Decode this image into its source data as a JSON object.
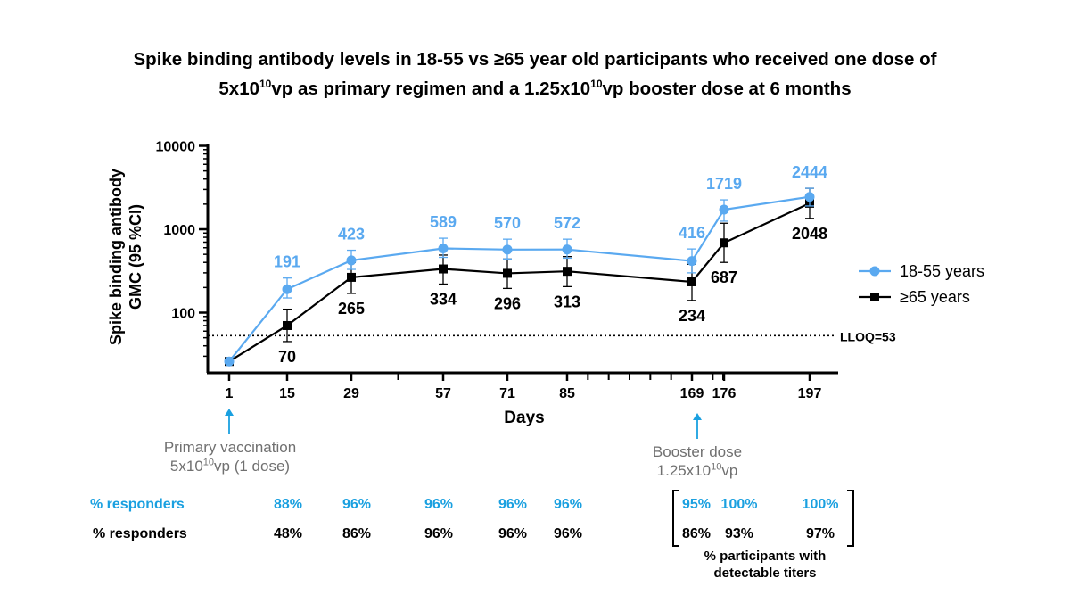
{
  "header": {
    "title_line1": "Spike binding antibody levels in 18-55 vs ≥65 year old participants who received one dose of",
    "title_line2": "5x10¹⁰vp as primary regimen and a 1.25x10¹⁰vp booster dose at 6 months"
  },
  "chart_data": {
    "type": "line",
    "title": "",
    "xlabel": "Days",
    "ylabel": "Spike binding antibody GMC (95 %CI)",
    "yscale": "log",
    "ylim": [
      25,
      10000
    ],
    "yticks": [
      100,
      1000,
      10000
    ],
    "yticklabels": [
      "100",
      "1000",
      "10000"
    ],
    "x": [
      1,
      15,
      29,
      57,
      71,
      85,
      169,
      176,
      197
    ],
    "xticklabels": [
      "1",
      "15",
      "29",
      "57",
      "71",
      "85",
      "169",
      "176",
      "197"
    ],
    "lloq": {
      "value": 53,
      "label": "LLOQ=53"
    },
    "series": [
      {
        "name": "18-55 years",
        "color": "#5aa9f0",
        "marker": "circle",
        "values": [
          26,
          191,
          423,
          589,
          570,
          572,
          416,
          1719,
          2444
        ],
        "labels": [
          "",
          "191",
          "423",
          "589",
          "570",
          "572",
          "416",
          "1719",
          "2444"
        ],
        "ci_low": [
          26,
          150,
          330,
          460,
          440,
          450,
          300,
          1250,
          1900
        ],
        "ci_high": [
          26,
          260,
          560,
          780,
          760,
          760,
          580,
          2250,
          3100
        ]
      },
      {
        "name": "≥65 years",
        "color": "#000000",
        "marker": "square",
        "values": [
          26,
          70,
          265,
          334,
          296,
          313,
          234,
          687,
          2048
        ],
        "labels": [
          "",
          "70",
          "265",
          "334",
          "296",
          "313",
          "234",
          "687",
          "2048"
        ],
        "ci_low": [
          26,
          45,
          170,
          220,
          195,
          205,
          140,
          400,
          1350
        ],
        "ci_high": [
          26,
          110,
          400,
          490,
          440,
          470,
          380,
          1180,
          3100
        ]
      }
    ],
    "legend_position": "right"
  },
  "annotations": {
    "primary_line1": "Primary vaccination",
    "primary_line2_prefix": "5x10",
    "primary_line2_exp": "10",
    "primary_line2_suffix": "vp (1 dose)",
    "booster_line1": "Booster dose",
    "booster_line2_prefix": "1.25x10",
    "booster_line2_exp": "10",
    "booster_line2_suffix": "vp"
  },
  "responders": {
    "row1_label": "% responders",
    "row2_label": "% responders",
    "row1": [
      "88%",
      "96%",
      "96%",
      "96%",
      "96%",
      "95%",
      "100%",
      "100%"
    ],
    "row2": [
      "48%",
      "86%",
      "96%",
      "96%",
      "96%",
      "86%",
      "93%",
      "97%"
    ],
    "note_line1": "% participants with",
    "note_line2": "detectable titers"
  }
}
